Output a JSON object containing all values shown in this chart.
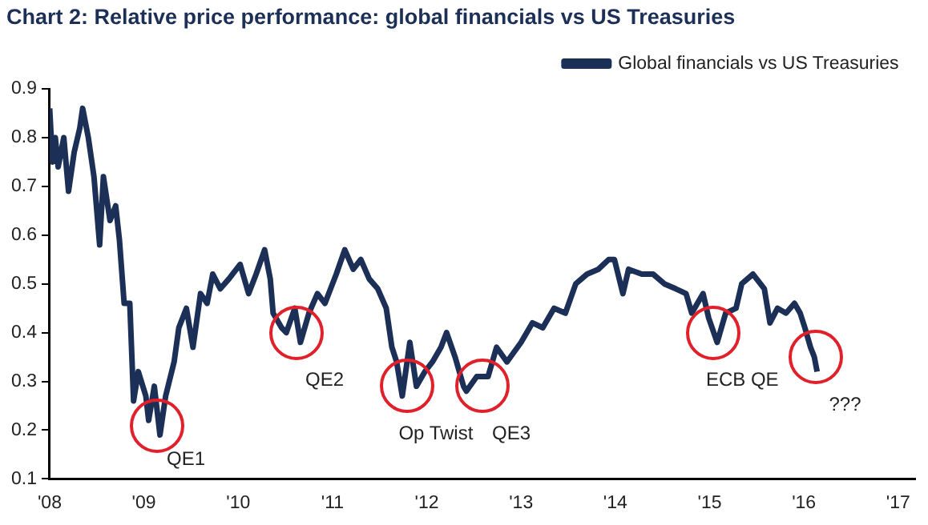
{
  "chart_data": {
    "type": "line",
    "title": "Chart 2: Relative price performance: global financials vs US Treasuries",
    "xlim": [
      2008,
      2017.18
    ],
    "xticks": [
      {
        "value": 2008,
        "label": "'08"
      },
      {
        "value": 2009,
        "label": "'09"
      },
      {
        "value": 2010,
        "label": "'10"
      },
      {
        "value": 2011,
        "label": "'11"
      },
      {
        "value": 2012,
        "label": "'12"
      },
      {
        "value": 2013,
        "label": "'13"
      },
      {
        "value": 2014,
        "label": "'14"
      },
      {
        "value": 2015,
        "label": "'15"
      },
      {
        "value": 2016,
        "label": "'16"
      },
      {
        "value": 2017,
        "label": "'17"
      }
    ],
    "ylim": [
      0.1,
      0.9
    ],
    "yticks": [
      0.1,
      0.2,
      0.3,
      0.4,
      0.5,
      0.6,
      0.7,
      0.8,
      0.9
    ],
    "grid": false,
    "legend": "top right",
    "marker": "none",
    "line_style": "solid",
    "x": [
      2008.0,
      2008.03,
      2008.06,
      2008.09,
      2008.15,
      2008.2,
      2008.26,
      2008.32,
      2008.35,
      2008.41,
      2008.47,
      2008.53,
      2008.57,
      2008.64,
      2008.7,
      2008.74,
      2008.79,
      2008.85,
      2008.89,
      2008.94,
      2009.02,
      2009.05,
      2009.11,
      2009.17,
      2009.23,
      2009.32,
      2009.37,
      2009.45,
      2009.52,
      2009.6,
      2009.67,
      2009.73,
      2009.81,
      2009.9,
      2010.02,
      2010.11,
      2010.19,
      2010.28,
      2010.34,
      2010.37,
      2010.46,
      2010.51,
      2010.6,
      2010.66,
      2010.75,
      2010.84,
      2010.92,
      2011.04,
      2011.13,
      2011.22,
      2011.3,
      2011.39,
      2011.48,
      2011.57,
      2011.63,
      2011.68,
      2011.74,
      2011.82,
      2011.89,
      2011.98,
      2012.06,
      2012.15,
      2012.21,
      2012.3,
      2012.39,
      2012.42,
      2012.53,
      2012.65,
      2012.74,
      2012.85,
      2013.0,
      2013.12,
      2013.23,
      2013.35,
      2013.47,
      2013.58,
      2013.7,
      2013.82,
      2013.93,
      2013.99,
      2014.08,
      2014.14,
      2014.28,
      2014.4,
      2014.52,
      2014.64,
      2014.75,
      2014.81,
      2014.93,
      2014.99,
      2015.08,
      2015.17,
      2015.28,
      2015.34,
      2015.46,
      2015.58,
      2015.64,
      2015.72,
      2015.81,
      2015.9,
      2015.96,
      2016.01,
      2016.07,
      2016.11,
      2016.14
    ],
    "series": [
      {
        "name": "Global financials vs US Treasuries",
        "color": "#1b2f57",
        "values": [
          0.86,
          0.75,
          0.8,
          0.74,
          0.8,
          0.69,
          0.77,
          0.82,
          0.86,
          0.8,
          0.72,
          0.58,
          0.72,
          0.63,
          0.66,
          0.59,
          0.46,
          0.46,
          0.26,
          0.32,
          0.27,
          0.22,
          0.29,
          0.19,
          0.27,
          0.34,
          0.41,
          0.45,
          0.37,
          0.48,
          0.46,
          0.52,
          0.49,
          0.51,
          0.54,
          0.48,
          0.52,
          0.57,
          0.51,
          0.44,
          0.41,
          0.4,
          0.45,
          0.38,
          0.44,
          0.48,
          0.46,
          0.52,
          0.57,
          0.53,
          0.55,
          0.51,
          0.49,
          0.45,
          0.37,
          0.34,
          0.27,
          0.38,
          0.29,
          0.32,
          0.34,
          0.37,
          0.4,
          0.35,
          0.29,
          0.28,
          0.31,
          0.31,
          0.37,
          0.34,
          0.38,
          0.42,
          0.41,
          0.45,
          0.44,
          0.5,
          0.52,
          0.53,
          0.55,
          0.55,
          0.48,
          0.53,
          0.52,
          0.52,
          0.5,
          0.49,
          0.48,
          0.44,
          0.48,
          0.43,
          0.38,
          0.44,
          0.45,
          0.5,
          0.52,
          0.49,
          0.42,
          0.45,
          0.44,
          0.46,
          0.44,
          0.41,
          0.37,
          0.35,
          0.32
        ]
      }
    ],
    "annotations": [
      {
        "text": "QE1",
        "x": 2009.14,
        "y": 0.21
      },
      {
        "text": "QE2",
        "x": 2010.61,
        "y": 0.4
      },
      {
        "text": "Op Twist",
        "x": 2011.79,
        "y": 0.29
      },
      {
        "text": "QE3",
        "x": 2012.59,
        "y": 0.29
      },
      {
        "text": "ECB QE",
        "x": 2015.04,
        "y": 0.4
      },
      {
        "text": "???",
        "x": 2016.13,
        "y": 0.35
      }
    ]
  }
}
